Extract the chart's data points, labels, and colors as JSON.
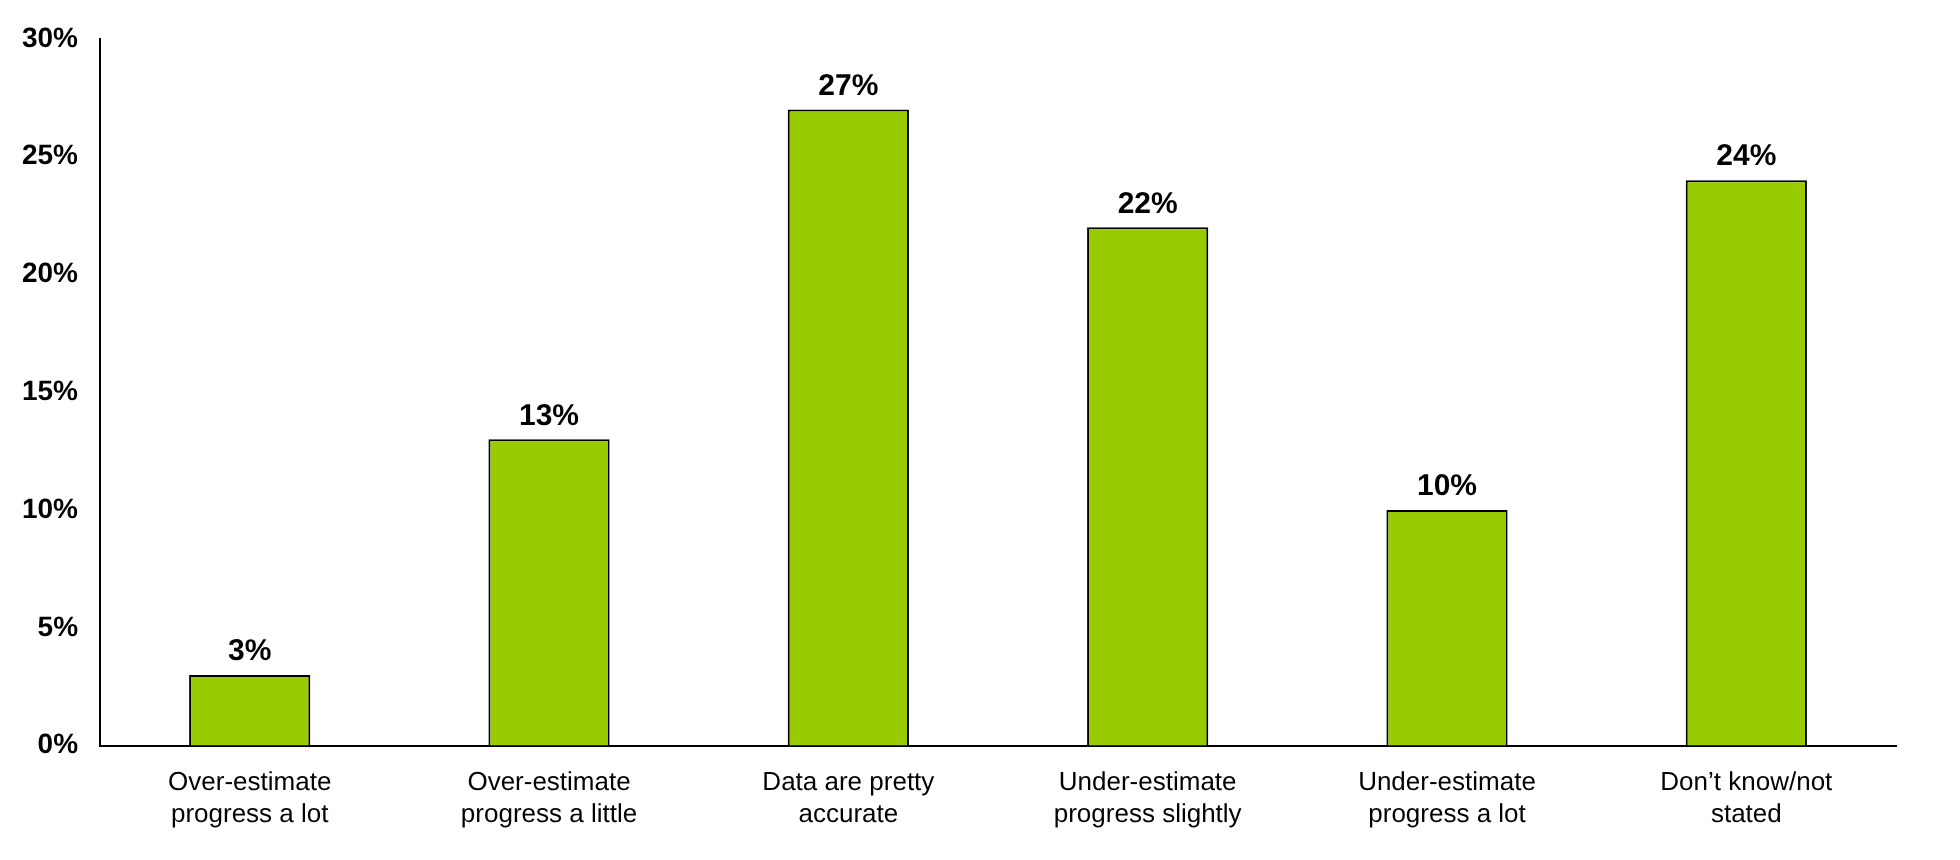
{
  "chart_data": {
    "type": "bar",
    "categories": [
      "Over-estimate progress a lot",
      "Over-estimate progress a little",
      "Data are pretty accurate",
      "Under-estimate progress slightly",
      "Under-estimate progress a lot",
      "Don’t know/not stated"
    ],
    "values": [
      3,
      13,
      27,
      22,
      10,
      24
    ],
    "value_labels": [
      "3%",
      "13%",
      "27%",
      "22%",
      "10%",
      "24%"
    ],
    "color": "#99cc00",
    "ylim": [
      0,
      30
    ],
    "yticks": [
      {
        "value": 0,
        "label": "0%"
      },
      {
        "value": 5,
        "label": "5%"
      },
      {
        "value": 10,
        "label": "10%"
      },
      {
        "value": 15,
        "label": "15%"
      },
      {
        "value": 20,
        "label": "20%"
      },
      {
        "value": 25,
        "label": "25%"
      },
      {
        "value": 30,
        "label": "30%"
      }
    ],
    "grid": false,
    "legend": false
  }
}
